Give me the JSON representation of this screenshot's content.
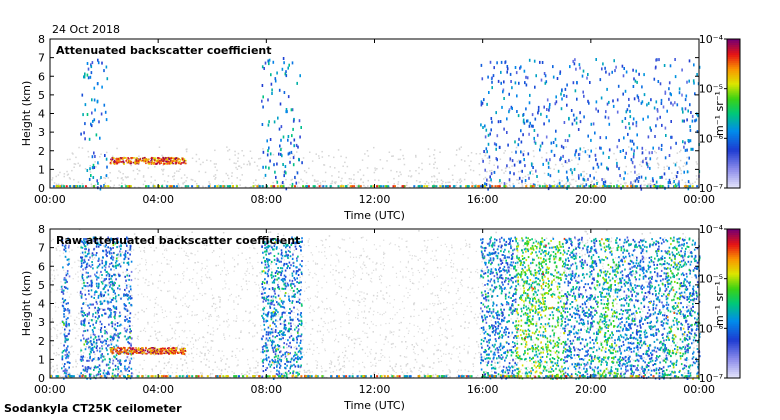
{
  "date": "24 Oct 2018",
  "footer": "Sodankyla CT25K ceilometer",
  "chart_data": [
    {
      "type": "heatmap",
      "title": "Attenuated backscatter coefficient",
      "xlabel": "Time (UTC)",
      "ylabel": "Height (km)",
      "x_ticks": [
        "00:00",
        "04:00",
        "08:00",
        "12:00",
        "16:00",
        "20:00",
        "00:00"
      ],
      "xlim_hours": [
        0,
        24
      ],
      "ylim_km": [
        0,
        8
      ],
      "y_ticks": [
        0,
        1,
        2,
        3,
        4,
        5,
        6,
        7,
        8
      ],
      "colorbar": {
        "unit_label": "m⁻¹ sr⁻¹",
        "ticks": [
          "10⁻⁴",
          "10⁻⁵",
          "10⁻⁶",
          "10⁻⁷"
        ],
        "scale": "log",
        "range": [
          1e-07,
          0.0001
        ]
      },
      "features": [
        {
          "name": "cloud layer",
          "start_h": 2.2,
          "end_h": 5.0,
          "height_km": 1.5,
          "level": 0.85
        },
        {
          "name": "precipitation column",
          "start_h": 1.1,
          "end_h": 2.1,
          "top_km": 7.0,
          "level": 0.35
        },
        {
          "name": "precipitation column",
          "start_h": 7.8,
          "end_h": 9.3,
          "top_km": 7.2,
          "level": 0.35
        },
        {
          "name": "scattered signal",
          "start_h": 15.9,
          "end_h": 24.0,
          "top_km": 7.0,
          "level": 0.3
        }
      ]
    },
    {
      "type": "heatmap",
      "title": "Raw attenuated backscatter coefficient",
      "xlabel": "Time (UTC)",
      "ylabel": "Height (km)",
      "x_ticks": [
        "00:00",
        "04:00",
        "08:00",
        "12:00",
        "16:00",
        "20:00",
        "00:00"
      ],
      "xlim_hours": [
        0,
        24
      ],
      "ylim_km": [
        0,
        8
      ],
      "y_ticks": [
        0,
        1,
        2,
        3,
        4,
        5,
        6,
        7,
        8
      ],
      "colorbar": {
        "unit_label": "m⁻¹ sr⁻¹",
        "ticks": [
          "10⁻⁴",
          "10⁻⁵",
          "10⁻⁶",
          "10⁻⁷"
        ],
        "scale": "log",
        "range": [
          1e-07,
          0.0001
        ]
      },
      "bands": [
        {
          "start_h": 0.4,
          "end_h": 0.7,
          "level": 0.3
        },
        {
          "start_h": 1.1,
          "end_h": 2.6,
          "level": 0.32
        },
        {
          "start_h": 2.7,
          "end_h": 3.0,
          "level": 0.3
        },
        {
          "start_h": 7.8,
          "end_h": 9.3,
          "level": 0.35
        },
        {
          "start_h": 15.9,
          "end_h": 17.2,
          "level": 0.35
        },
        {
          "start_h": 17.2,
          "end_h": 19.0,
          "level": 0.55
        },
        {
          "start_h": 19.0,
          "end_h": 20.2,
          "level": 0.35
        },
        {
          "start_h": 20.2,
          "end_h": 21.0,
          "level": 0.5
        },
        {
          "start_h": 21.0,
          "end_h": 22.8,
          "level": 0.35
        },
        {
          "start_h": 22.8,
          "end_h": 23.3,
          "level": 0.5
        },
        {
          "start_h": 23.3,
          "end_h": 24.0,
          "level": 0.38
        }
      ],
      "features": [
        {
          "name": "cloud layer",
          "start_h": 2.2,
          "end_h": 5.0,
          "height_km": 1.5,
          "level": 0.85
        }
      ]
    }
  ]
}
